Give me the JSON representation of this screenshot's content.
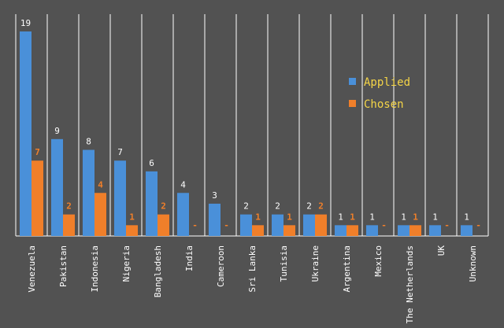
{
  "chart_data": {
    "type": "bar",
    "title": "",
    "xlabel": "",
    "ylabel": "",
    "ylim": [
      0,
      20
    ],
    "grid": "vertical separators",
    "legend_position": "top-right",
    "categories": [
      "Venezuela",
      "Pakistan",
      "Indonesia",
      "Nigeria",
      "Bangladesh",
      "India",
      "Cameroon",
      "Sri Lanka",
      "Tunisia",
      "Ukraine",
      "Argentina",
      "Mexico",
      "The Netherlands",
      "UK",
      "Unknown"
    ],
    "series": [
      {
        "name": "Applied",
        "color": "#4a90d9",
        "label_color": "#ffffff",
        "values": [
          19,
          9,
          8,
          7,
          6,
          4,
          3,
          2,
          2,
          2,
          1,
          1,
          1,
          1,
          1
        ],
        "labels": [
          "19",
          "9",
          "8",
          "7",
          "6",
          "4",
          "3",
          "2",
          "2",
          "2",
          "1",
          "1",
          "1",
          "1",
          "1"
        ]
      },
      {
        "name": "Chosen",
        "color": "#f07f2a",
        "label_color": "#f07f2a",
        "values": [
          7,
          2,
          4,
          1,
          2,
          0,
          0,
          1,
          1,
          2,
          1,
          0,
          1,
          0,
          0
        ],
        "labels": [
          "7",
          "2",
          "4",
          "1",
          "2",
          "-",
          "-",
          "1",
          "1",
          "2",
          "1",
          "-",
          "1",
          "-",
          "-"
        ]
      }
    ]
  },
  "colors": {
    "background": "#525252",
    "gridline": "#ffffff",
    "legend_text": "#f5d547"
  }
}
